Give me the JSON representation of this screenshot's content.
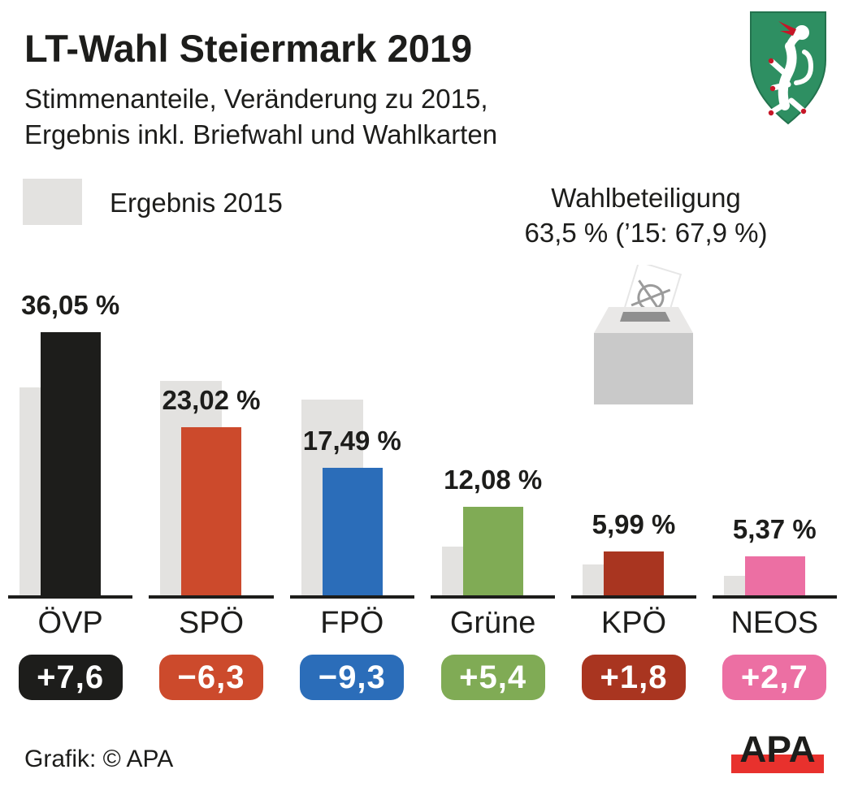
{
  "header": {
    "title": "LT-Wahl Steiermark 2019",
    "subtitle": [
      "Stimmenanteile, Veränderung zu 2015,",
      "Ergebnis inkl. Briefwahl und Wahlkarten"
    ]
  },
  "legend": {
    "label": "Ergebnis 2015",
    "swatch_color": "#e3e2e0"
  },
  "turnout": {
    "title": "Wahlbeteiligung",
    "value": "63,5 % (’15: 67,9 %)"
  },
  "chart_data": {
    "type": "bar",
    "title": "LT-Wahl Steiermark 2019",
    "subtitle": "Stimmenanteile, Veränderung zu 2015, Ergebnis inkl. Briefwahl und Wahlkarten",
    "categories": [
      "ÖVP",
      "SPÖ",
      "FPÖ",
      "Grüne",
      "KPÖ",
      "NEOS"
    ],
    "series": [
      {
        "name": "Ergebnis 2015",
        "values": [
          28.45,
          29.32,
          26.79,
          6.68,
          4.19,
          2.67
        ]
      },
      {
        "name": "Ergebnis 2019",
        "values": [
          36.05,
          23.02,
          17.49,
          12.08,
          5.99,
          5.37
        ]
      }
    ],
    "value_labels": [
      "36,05 %",
      "23,02 %",
      "17,49 %",
      "12,08 %",
      "5,99 %",
      "5,37 %"
    ],
    "change_labels": [
      "+7,6",
      "−6,3",
      "−9,3",
      "+5,4",
      "+1,8",
      "+2,7"
    ],
    "bar_colors": [
      "#1d1d1b",
      "#cc4a2c",
      "#2b6db9",
      "#80ab55",
      "#a93520",
      "#ec6fa3"
    ],
    "color_2015": "#e3e2e0",
    "ylim": [
      0,
      40
    ],
    "grid": false,
    "legend_position": "top-left",
    "turnout": {
      "current": 63.5,
      "previous": 67.9
    }
  },
  "icons": {
    "coat_of_arms": "styria-coat-of-arms",
    "ballot_box": "ballot-box-icon",
    "legend_swatch": "gray-square-swatch"
  },
  "footer": {
    "credit": "Grafik: © APA",
    "logo_text": "APA",
    "logo_bar_color": "#e8312d"
  }
}
